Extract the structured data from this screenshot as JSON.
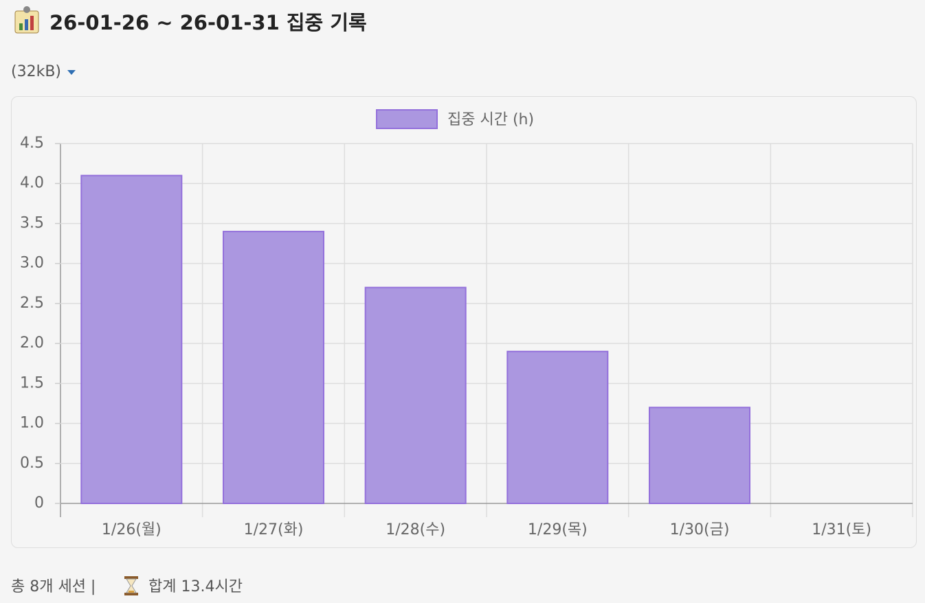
{
  "header": {
    "title": "26-01-26 ~ 26-01-31 집중 기록"
  },
  "attachment": {
    "size": "(32kB)"
  },
  "chart_data": {
    "type": "bar",
    "categories": [
      "1/26(월)",
      "1/27(화)",
      "1/28(수)",
      "1/29(목)",
      "1/30(금)",
      "1/31(토)"
    ],
    "series": [
      {
        "name": "집중 시간 (h)",
        "color": "#ab97e0",
        "border_color": "#9370db",
        "values": [
          4.1,
          3.4,
          2.7,
          1.9,
          1.2,
          0
        ]
      }
    ],
    "ylim": [
      0,
      4.5
    ],
    "yticks": [
      0,
      0.5,
      {
        "value": 1,
        "label": "1.0"
      },
      1.5,
      {
        "value": 2,
        "label": "2.0"
      },
      2.5,
      {
        "value": 3,
        "label": "3.0"
      },
      3.5,
      {
        "value": 4,
        "label": "4.0"
      },
      4.5
    ],
    "grid": true,
    "legend": "top"
  },
  "footer": {
    "sessions": "총 8개 세션 |",
    "total": "합계 13.4시간"
  }
}
